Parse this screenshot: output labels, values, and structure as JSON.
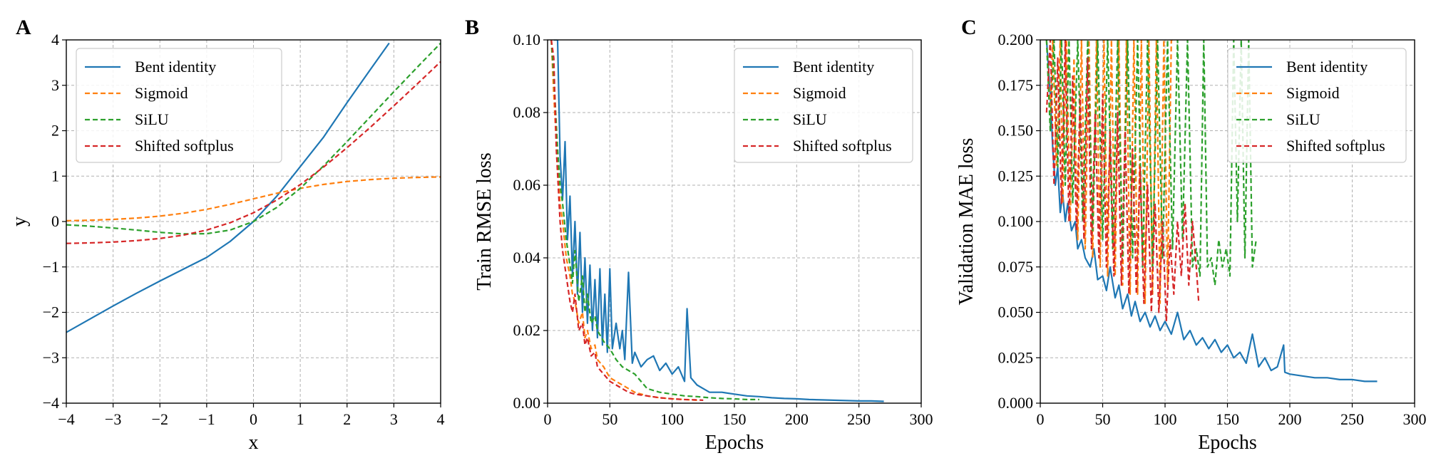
{
  "colors": {
    "bent_identity": "#1f77b4",
    "sigmoid": "#ff7f0e",
    "silu": "#2ca02c",
    "shifted_softplus": "#d62728",
    "grid": "#b0b0b0"
  },
  "chart_data": [
    {
      "panel": "A",
      "type": "line",
      "xlabel": "x",
      "ylabel": "y",
      "xlim": [
        -4,
        4
      ],
      "ylim": [
        -4,
        4
      ],
      "xticks": [
        -4,
        -3,
        -2,
        -1,
        0,
        1,
        2,
        3,
        4
      ],
      "yticks": [
        -4,
        -3,
        -2,
        -1,
        0,
        1,
        2,
        3,
        4
      ],
      "xtick_labels": [
        "−4",
        "−3",
        "−2",
        "−1",
        "0",
        "1",
        "2",
        "3",
        "4"
      ],
      "ytick_labels": [
        "−4",
        "−3",
        "−2",
        "−1",
        "0",
        "1",
        "2",
        "3",
        "4"
      ],
      "grid": true,
      "legend_position": "top-left",
      "series": [
        {
          "name": "Bent identity",
          "key": "bent_identity",
          "dashed": false,
          "x": [
            -4,
            -3.5,
            -3,
            -2.5,
            -2,
            -1.5,
            -1,
            -0.5,
            0,
            0.5,
            1,
            1.5,
            2,
            2.5,
            2.9
          ],
          "y": [
            -2.44,
            -2.15,
            -1.86,
            -1.58,
            -1.31,
            -1.05,
            -0.79,
            -0.44,
            0,
            0.56,
            1.21,
            1.86,
            2.62,
            3.35,
            3.93
          ]
        },
        {
          "name": "Sigmoid",
          "key": "sigmoid",
          "dashed": true,
          "x": [
            -4,
            -3.5,
            -3,
            -2.5,
            -2,
            -1.5,
            -1,
            -0.5,
            0,
            0.5,
            1,
            1.5,
            2,
            2.5,
            3,
            3.5,
            4
          ],
          "y": [
            0.018,
            0.029,
            0.047,
            0.076,
            0.119,
            0.182,
            0.269,
            0.378,
            0.5,
            0.622,
            0.731,
            0.818,
            0.881,
            0.924,
            0.953,
            0.971,
            0.982
          ]
        },
        {
          "name": "SiLU",
          "key": "silu",
          "dashed": true,
          "x": [
            -4,
            -3.5,
            -3,
            -2.5,
            -2,
            -1.5,
            -1,
            -0.5,
            0,
            0.5,
            1,
            1.5,
            2,
            2.5,
            3,
            3.5,
            4
          ],
          "y": [
            -0.072,
            -0.102,
            -0.142,
            -0.189,
            -0.238,
            -0.273,
            -0.269,
            -0.189,
            0,
            0.311,
            0.731,
            1.227,
            1.762,
            2.311,
            2.858,
            3.398,
            3.928
          ]
        },
        {
          "name": "Shifted softplus",
          "key": "shifted_softplus",
          "dashed": true,
          "x": [
            -4,
            -3.5,
            -3,
            -2.5,
            -2,
            -1.5,
            -1,
            -0.5,
            0,
            0.5,
            1,
            1.5,
            2,
            2.5,
            3,
            3.5,
            4
          ],
          "y": [
            -0.482,
            -0.471,
            -0.451,
            -0.421,
            -0.373,
            -0.299,
            -0.187,
            -0.026,
            0.193,
            0.474,
            0.813,
            1.201,
            1.627,
            2.079,
            2.549,
            3.03,
            3.518
          ]
        }
      ]
    },
    {
      "panel": "B",
      "type": "line",
      "xlabel": "Epochs",
      "ylabel": "Train RMSE loss",
      "xlim": [
        0,
        300
      ],
      "ylim": [
        0,
        0.1
      ],
      "xticks": [
        0,
        50,
        100,
        150,
        200,
        250,
        300
      ],
      "yticks": [
        0,
        0.02,
        0.04,
        0.06,
        0.08,
        0.1
      ],
      "xtick_labels": [
        "0",
        "50",
        "100",
        "150",
        "200",
        "250",
        "300"
      ],
      "ytick_labels": [
        "0.00",
        "0.02",
        "0.04",
        "0.06",
        "0.08",
        "0.10"
      ],
      "grid": true,
      "legend_position": "top-right",
      "series": [
        {
          "name": "Bent identity",
          "key": "bent_identity",
          "dashed": false,
          "x": [
            5,
            8,
            10,
            12,
            14,
            16,
            18,
            20,
            22,
            24,
            26,
            28,
            30,
            32,
            34,
            36,
            38,
            40,
            42,
            44,
            46,
            48,
            50,
            52,
            55,
            58,
            60,
            62,
            65,
            68,
            70,
            75,
            80,
            85,
            90,
            95,
            100,
            105,
            110,
            112,
            115,
            120,
            125,
            130,
            140,
            150,
            160,
            170,
            180,
            190,
            200,
            210,
            220,
            230,
            240,
            250,
            260,
            270
          ],
          "y": [
            0.1,
            0.1,
            0.068,
            0.056,
            0.072,
            0.045,
            0.057,
            0.035,
            0.05,
            0.03,
            0.047,
            0.025,
            0.04,
            0.022,
            0.038,
            0.02,
            0.034,
            0.018,
            0.037,
            0.016,
            0.03,
            0.014,
            0.037,
            0.015,
            0.022,
            0.015,
            0.02,
            0.012,
            0.036,
            0.011,
            0.014,
            0.01,
            0.012,
            0.013,
            0.009,
            0.011,
            0.008,
            0.01,
            0.006,
            0.026,
            0.007,
            0.005,
            0.004,
            0.003,
            0.003,
            0.0025,
            0.002,
            0.0018,
            0.0015,
            0.0013,
            0.0012,
            0.001,
            0.0009,
            0.0008,
            0.0007,
            0.0006,
            0.0006,
            0.0005
          ]
        },
        {
          "name": "Sigmoid",
          "key": "sigmoid",
          "dashed": true,
          "x": [
            3,
            5,
            8,
            10,
            12,
            15,
            18,
            20,
            22,
            25,
            28,
            30,
            32,
            35,
            38,
            40,
            45,
            50,
            55,
            60,
            65,
            70,
            80,
            90,
            100,
            110,
            120
          ],
          "y": [
            0.1,
            0.085,
            0.065,
            0.055,
            0.05,
            0.04,
            0.035,
            0.03,
            0.028,
            0.022,
            0.025,
            0.018,
            0.02,
            0.015,
            0.016,
            0.012,
            0.01,
            0.007,
            0.006,
            0.005,
            0.004,
            0.003,
            0.002,
            0.0015,
            0.0012,
            0.001,
            0.0008
          ]
        },
        {
          "name": "SiLU",
          "key": "silu",
          "dashed": true,
          "x": [
            3,
            5,
            8,
            10,
            12,
            15,
            18,
            20,
            22,
            25,
            28,
            30,
            32,
            35,
            38,
            40,
            45,
            50,
            55,
            60,
            65,
            70,
            75,
            80,
            90,
            100,
            110,
            120,
            130,
            140,
            150,
            160,
            170
          ],
          "y": [
            0.1,
            0.09,
            0.07,
            0.06,
            0.055,
            0.045,
            0.038,
            0.033,
            0.042,
            0.028,
            0.035,
            0.025,
            0.03,
            0.022,
            0.024,
            0.02,
            0.017,
            0.015,
            0.012,
            0.01,
            0.009,
            0.008,
            0.006,
            0.004,
            0.003,
            0.0025,
            0.002,
            0.0018,
            0.0015,
            0.0013,
            0.0012,
            0.001,
            0.001
          ]
        },
        {
          "name": "Shifted softplus",
          "key": "shifted_softplus",
          "dashed": true,
          "x": [
            3,
            5,
            7,
            10,
            12,
            15,
            18,
            20,
            22,
            25,
            28,
            30,
            32,
            35,
            38,
            40,
            45,
            50,
            55,
            60,
            65,
            70,
            80,
            90,
            100,
            110,
            120,
            125
          ],
          "y": [
            0.1,
            0.095,
            0.07,
            0.05,
            0.042,
            0.035,
            0.028,
            0.025,
            0.03,
            0.02,
            0.022,
            0.016,
            0.018,
            0.013,
            0.014,
            0.01,
            0.008,
            0.006,
            0.005,
            0.004,
            0.003,
            0.0025,
            0.002,
            0.0015,
            0.0012,
            0.001,
            0.0009,
            0.0008
          ]
        }
      ]
    },
    {
      "panel": "C",
      "type": "line",
      "xlabel": "Epochs",
      "ylabel": "Validation MAE loss",
      "xlim": [
        0,
        300
      ],
      "ylim": [
        0,
        0.2
      ],
      "xticks": [
        0,
        50,
        100,
        150,
        200,
        250,
        300
      ],
      "yticks": [
        0,
        0.025,
        0.05,
        0.075,
        0.1,
        0.125,
        0.15,
        0.175,
        0.2
      ],
      "xtick_labels": [
        "0",
        "50",
        "100",
        "150",
        "200",
        "250",
        "300"
      ],
      "ytick_labels": [
        "0.000",
        "0.025",
        "0.050",
        "0.075",
        "0.100",
        "0.125",
        "0.150",
        "0.175",
        "0.200"
      ],
      "grid": true,
      "legend_position": "top-right",
      "series": [
        {
          "name": "Bent identity",
          "key": "bent_identity",
          "dashed": false,
          "x": [
            5,
            8,
            10,
            12,
            14,
            16,
            18,
            20,
            22,
            25,
            28,
            30,
            33,
            36,
            40,
            43,
            46,
            50,
            53,
            56,
            60,
            63,
            66,
            70,
            73,
            76,
            80,
            84,
            88,
            92,
            96,
            100,
            105,
            110,
            115,
            120,
            125,
            130,
            135,
            140,
            145,
            150,
            155,
            160,
            165,
            170,
            175,
            180,
            185,
            190,
            195,
            196,
            200,
            210,
            220,
            230,
            240,
            250,
            260,
            270
          ],
          "y": [
            0.2,
            0.17,
            0.14,
            0.12,
            0.13,
            0.105,
            0.115,
            0.1,
            0.11,
            0.095,
            0.1,
            0.085,
            0.09,
            0.08,
            0.075,
            0.085,
            0.068,
            0.07,
            0.062,
            0.075,
            0.058,
            0.065,
            0.052,
            0.06,
            0.048,
            0.056,
            0.045,
            0.05,
            0.042,
            0.048,
            0.04,
            0.045,
            0.038,
            0.05,
            0.035,
            0.04,
            0.032,
            0.036,
            0.03,
            0.035,
            0.028,
            0.032,
            0.025,
            0.028,
            0.022,
            0.038,
            0.02,
            0.025,
            0.018,
            0.02,
            0.032,
            0.017,
            0.016,
            0.015,
            0.014,
            0.014,
            0.013,
            0.013,
            0.012,
            0.012
          ]
        },
        {
          "name": "Sigmoid",
          "key": "sigmoid",
          "dashed": true,
          "x": [
            5,
            8,
            10,
            13,
            16,
            18,
            21,
            24,
            27,
            30,
            33,
            36,
            39,
            42,
            45,
            48,
            51,
            54,
            57,
            60,
            63,
            66,
            69,
            72,
            75,
            78,
            81,
            84,
            87,
            90,
            93,
            96,
            99,
            102,
            105,
            108
          ],
          "y": [
            0.2,
            0.16,
            0.2,
            0.13,
            0.2,
            0.11,
            0.2,
            0.1,
            0.19,
            0.09,
            0.2,
            0.085,
            0.2,
            0.08,
            0.2,
            0.075,
            0.2,
            0.07,
            0.2,
            0.07,
            0.2,
            0.065,
            0.2,
            0.06,
            0.2,
            0.06,
            0.2,
            0.055,
            0.2,
            0.06,
            0.2,
            0.055,
            0.2,
            0.065,
            0.2,
            0.2
          ]
        },
        {
          "name": "SiLU",
          "key": "silu",
          "dashed": true,
          "x": [
            5,
            8,
            11,
            14,
            17,
            20,
            23,
            26,
            30,
            34,
            38,
            42,
            46,
            50,
            54,
            58,
            62,
            66,
            70,
            74,
            78,
            82,
            86,
            90,
            94,
            98,
            102,
            106,
            110,
            114,
            118,
            122,
            125,
            128,
            131,
            134,
            137,
            140,
            143,
            146,
            149,
            152,
            155,
            158,
            161,
            164,
            167,
            170,
            173
          ],
          "y": [
            0.2,
            0.15,
            0.2,
            0.13,
            0.2,
            0.12,
            0.2,
            0.11,
            0.2,
            0.1,
            0.2,
            0.095,
            0.2,
            0.09,
            0.2,
            0.085,
            0.2,
            0.08,
            0.2,
            0.08,
            0.2,
            0.075,
            0.2,
            0.075,
            0.2,
            0.08,
            0.2,
            0.085,
            0.2,
            0.09,
            0.2,
            0.075,
            0.085,
            0.07,
            0.2,
            0.075,
            0.08,
            0.065,
            0.09,
            0.075,
            0.085,
            0.07,
            0.2,
            0.1,
            0.2,
            0.08,
            0.2,
            0.075,
            0.09
          ]
        },
        {
          "name": "Shifted softplus",
          "key": "shifted_softplus",
          "dashed": true,
          "x": [
            5,
            8,
            11,
            14,
            17,
            20,
            23,
            26,
            29,
            32,
            35,
            38,
            41,
            44,
            47,
            50,
            53,
            56,
            59,
            62,
            65,
            68,
            71,
            74,
            77,
            80,
            83,
            86,
            89,
            92,
            95,
            98,
            101,
            104,
            107,
            110,
            113,
            116,
            119,
            122,
            125,
            127
          ],
          "y": [
            0.16,
            0.2,
            0.12,
            0.19,
            0.11,
            0.2,
            0.1,
            0.18,
            0.095,
            0.17,
            0.09,
            0.19,
            0.085,
            0.16,
            0.08,
            0.17,
            0.075,
            0.15,
            0.07,
            0.16,
            0.065,
            0.15,
            0.06,
            0.14,
            0.06,
            0.13,
            0.055,
            0.12,
            0.05,
            0.11,
            0.05,
            0.1,
            0.045,
            0.09,
            0.06,
            0.1,
            0.07,
            0.11,
            0.065,
            0.1,
            0.075,
            0.055
          ]
        }
      ]
    }
  ]
}
